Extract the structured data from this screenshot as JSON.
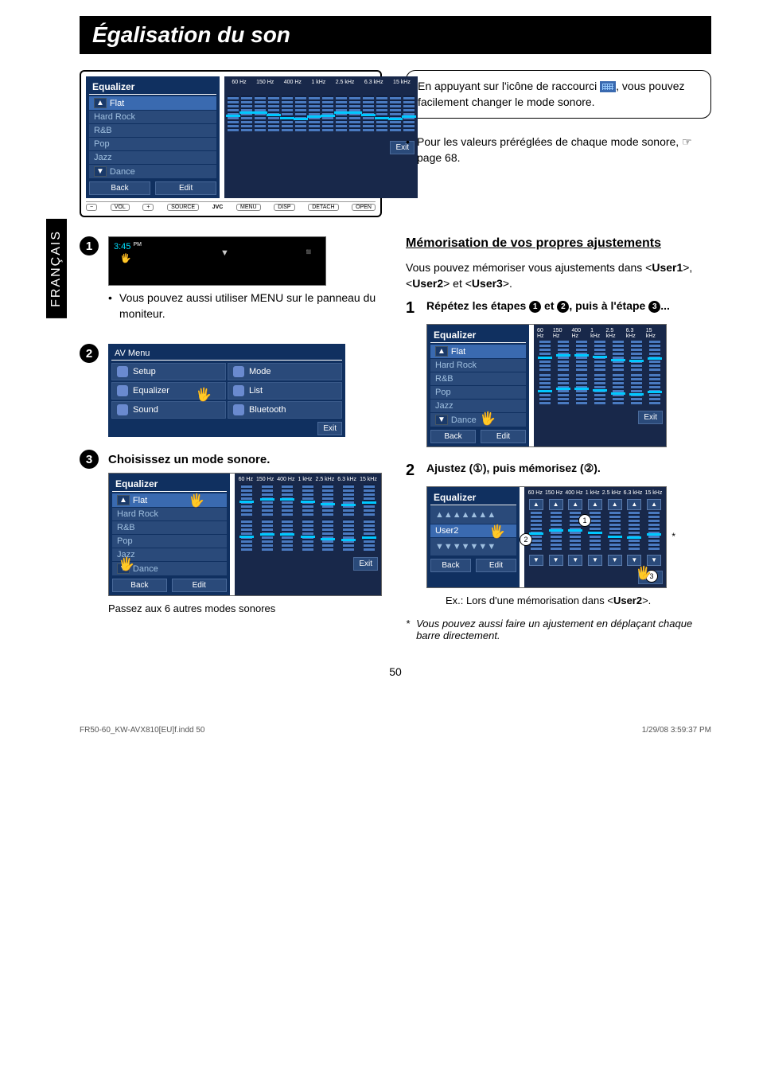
{
  "page": {
    "title": "Égalisation du son",
    "lang_tab": "FRANÇAIS",
    "page_number": "50",
    "footer_left": "FR50-60_KW-AVX810[EU]f.indd   50",
    "footer_right": "1/29/08   3:59:37 PM"
  },
  "callout": {
    "line1": "En appuyant sur l'icône de raccourci",
    "line2": ", vous pouvez facilement changer le mode sonore."
  },
  "preset_note": "Pour les valeurs préréglées de chaque mode sonore, ☞ page 68.",
  "equalizer": {
    "title": "Equalizer",
    "freq_labels": [
      "60 Hz",
      "150 Hz",
      "400 Hz",
      "1 kHz",
      "2.5 kHz",
      "6.3 kHz",
      "15 kHz"
    ],
    "modes": [
      "Flat",
      "Hard Rock",
      "R&B",
      "Pop",
      "Jazz",
      "Dance"
    ],
    "back": "Back",
    "edit": "Edit",
    "exit": "Exit"
  },
  "device_strip": {
    "vol": "VOL",
    "source": "SOURCE",
    "brand": "JVC",
    "menu": "MENU",
    "disp": "DISP",
    "detach": "DETACH",
    "open": "OPEN"
  },
  "step1": {
    "time": "3:45",
    "pm": "PM"
  },
  "menu_note": "Vous pouvez aussi utiliser MENU sur le panneau du moniteur.",
  "av_menu": {
    "title": "AV Menu",
    "items": [
      {
        "label": "Setup"
      },
      {
        "label": "Mode"
      },
      {
        "label": "Equalizer"
      },
      {
        "label": "List"
      },
      {
        "label": "Sound"
      },
      {
        "label": "Bluetooth"
      }
    ],
    "exit": "Exit"
  },
  "step3": {
    "heading": "Choisissez un mode sonore.",
    "caption": "Passez aux 6 autres modes sonores"
  },
  "memo": {
    "heading": "Mémorisation de vos propres ajustements",
    "intro_a": "Vous pouvez mémoriser vous ajustements dans <",
    "u1": "User1",
    "sep1": ">, <",
    "u2": "User2",
    "sep2": "> et <",
    "u3": "User3",
    "intro_b": ">.",
    "step1_a": "Répétez les étapes ",
    "step1_b": " et ",
    "step1_c": ", puis à l'étape ",
    "step1_d": "...",
    "step2": "Ajustez (①), puis mémorisez (②).",
    "user2": "User2",
    "example_a": "Ex.: Lors d'une mémorisation dans <",
    "example_b": ">.",
    "footnote_mark": "*",
    "footnote": "Vous pouvez aussi faire un ajustement en déplaçant chaque barre directement."
  }
}
